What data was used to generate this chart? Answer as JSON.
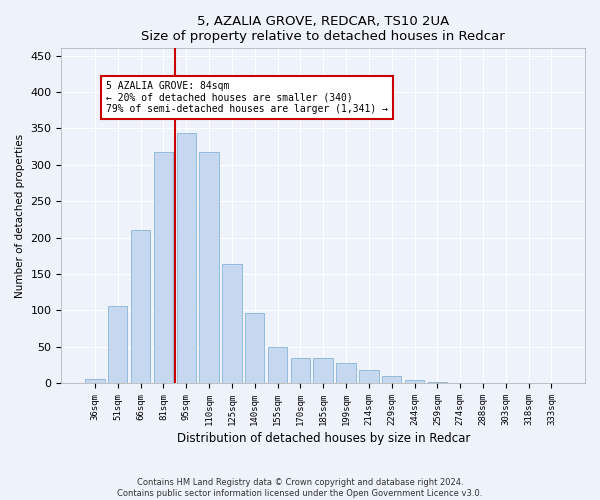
{
  "title1": "5, AZALIA GROVE, REDCAR, TS10 2UA",
  "title2": "Size of property relative to detached houses in Redcar",
  "xlabel": "Distribution of detached houses by size in Redcar",
  "ylabel": "Number of detached properties",
  "categories": [
    "36sqm",
    "51sqm",
    "66sqm",
    "81sqm",
    "95sqm",
    "110sqm",
    "125sqm",
    "140sqm",
    "155sqm",
    "170sqm",
    "185sqm",
    "199sqm",
    "214sqm",
    "229sqm",
    "244sqm",
    "259sqm",
    "274sqm",
    "288sqm",
    "303sqm",
    "318sqm",
    "333sqm"
  ],
  "values": [
    5,
    106,
    210,
    317,
    344,
    317,
    163,
    96,
    50,
    35,
    35,
    27,
    18,
    10,
    4,
    1,
    0,
    0,
    0,
    0,
    0
  ],
  "bar_color": "#c5d8f0",
  "bar_edge_color": "#8ab4d8",
  "vline_index": 3,
  "vline_color": "#cc0000",
  "annotation_line1": "5 AZALIA GROVE: 84sqm",
  "annotation_line2": "← 20% of detached houses are smaller (340)",
  "annotation_line3": "79% of semi-detached houses are larger (1,341) →",
  "annotation_box_color": "#ffffff",
  "annotation_box_edge": "#cc0000",
  "ylim": [
    0,
    460
  ],
  "yticks": [
    0,
    50,
    100,
    150,
    200,
    250,
    300,
    350,
    400,
    450
  ],
  "footer1": "Contains HM Land Registry data © Crown copyright and database right 2024.",
  "footer2": "Contains public sector information licensed under the Open Government Licence v3.0.",
  "bg_color": "#eef3fb",
  "grid_color": "#ffffff"
}
